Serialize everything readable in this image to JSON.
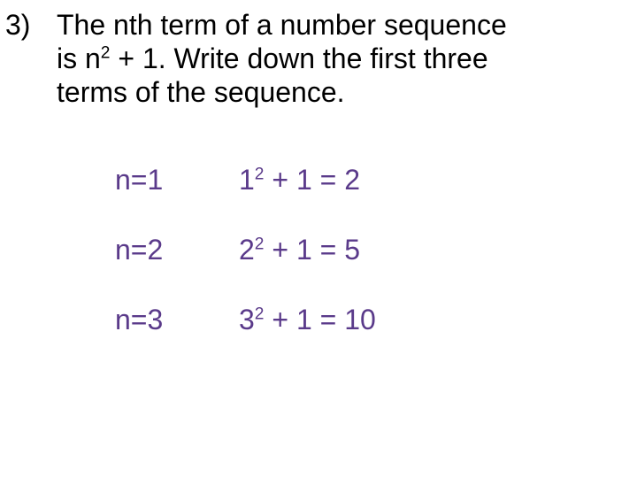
{
  "question_number": "3)",
  "question_line1": "The nth term of a number sequence",
  "question_line2_a": "is n",
  "question_line2_sup": "2",
  "question_line2_b": " + 1.  Write down the first three",
  "question_line3": "terms of the sequence.",
  "rows": [
    {
      "lhs": "n=1",
      "base": "1",
      "exp": "2",
      "rest": " + 1 = 2"
    },
    {
      "lhs": "n=2",
      "base": "2",
      "exp": "2",
      "rest": " + 1 =  5"
    },
    {
      "lhs": "n=3",
      "base": "3",
      "exp": "2",
      "rest": " + 1 = 10"
    }
  ],
  "colors": {
    "text": "#000000",
    "accent": "#5a3a8a",
    "background": "#ffffff"
  },
  "font_size_pt": 32
}
